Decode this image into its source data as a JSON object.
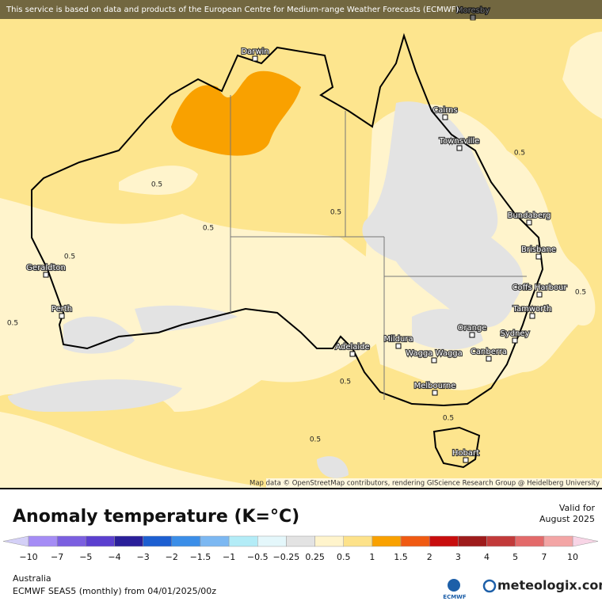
{
  "banner": "This service is based on data and products of the European Centre for Medium-range Weather Forecasts (ECMWF)",
  "cities": [
    "Moresby",
    "Darwin",
    "Cairns",
    "Townsville",
    "Bundaberg",
    "Brisbane",
    "Coffs Harbour",
    "Tamworth",
    "Geraldton",
    "Perth",
    "Orange",
    "Sydney",
    "Mildura",
    "Adelaide",
    "Wagga Wagga",
    "Canberra",
    "Melbourne",
    "Hobart"
  ],
  "contour_labels": [
    "0.5",
    "0.5",
    "0.5",
    "0.5",
    "0.5",
    "0.5",
    "0.5",
    "0.5",
    "0.5",
    "0.5"
  ],
  "attribution": "Map data © OpenStreetMap contributors, rendering GIScience Research Group @ Heidelberg University",
  "title": "Anomaly temperature (K=°C)",
  "valid": {
    "label": "Valid for",
    "date": "August 2025"
  },
  "legend": {
    "ticks": [
      "−10",
      "−7",
      "−5",
      "−4",
      "−3",
      "−2",
      "−1.5",
      "−1",
      "−0.5",
      "−0.25",
      "0.25",
      "0.5",
      "1",
      "1.5",
      "2",
      "3",
      "4",
      "5",
      "7",
      "10"
    ],
    "under_color": "#d4d0f7",
    "over_color": "#f8d5e6",
    "colors": [
      "#a58cf5",
      "#7b5fe0",
      "#5b3fcf",
      "#2a1f9a",
      "#1d5fd1",
      "#3b8ee8",
      "#7cb8f2",
      "#b3ecf7",
      "#e4f7fb",
      "#e3e3e3",
      "#fff4cc",
      "#fde28a",
      "#f9a100",
      "#f05a12",
      "#c80d0d",
      "#9e1b1b",
      "#c23a3a",
      "#e36a6a",
      "#f3a5a5"
    ]
  },
  "footer": {
    "region": "Australia",
    "model": "ECMWF SEAS5 (monthly) from 04/01/2025/00z"
  },
  "logos": {
    "ecmwf": "ECMWF",
    "meteologix": "meteologix.com"
  }
}
